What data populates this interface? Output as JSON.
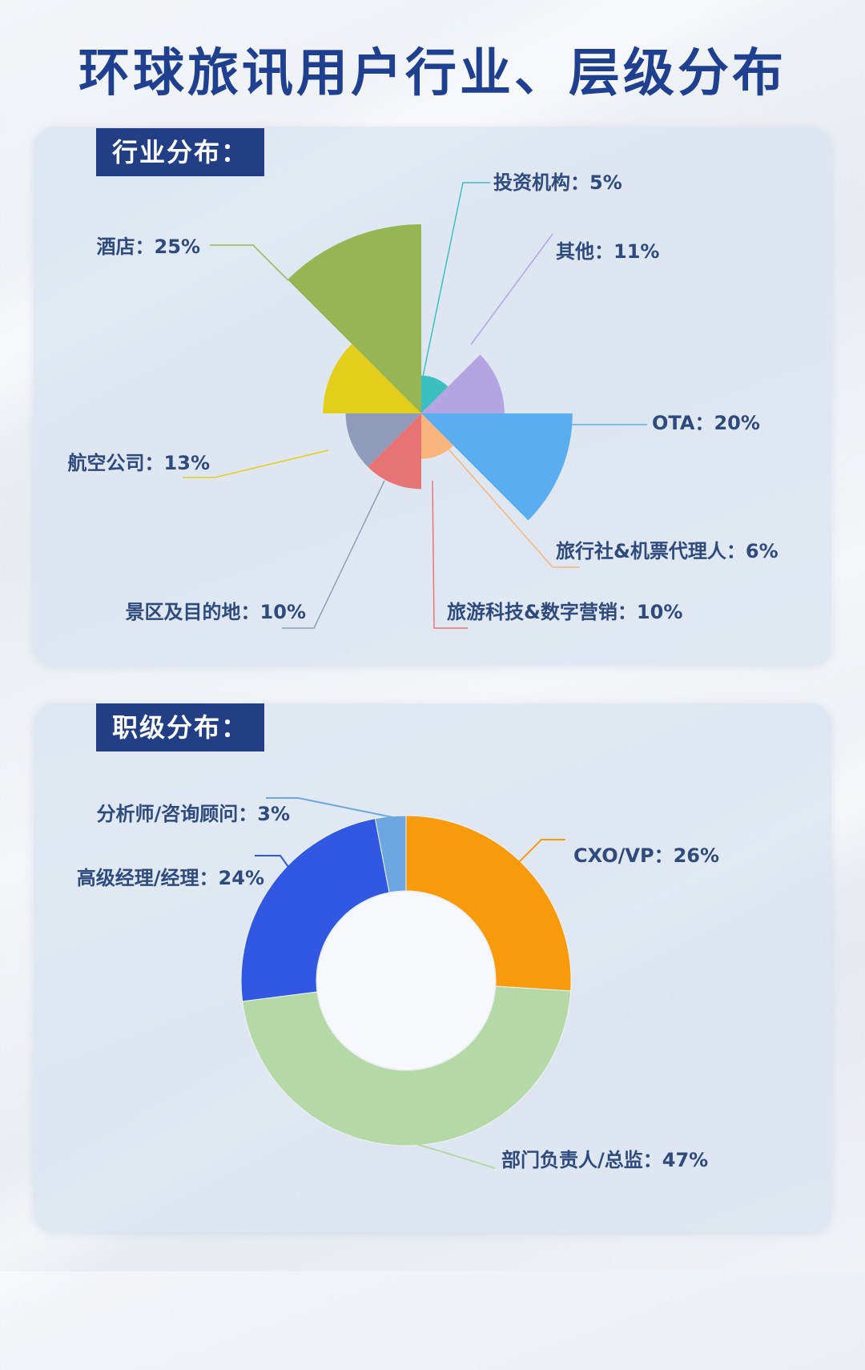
{
  "title": "环球旅讯用户行业、层级分布",
  "colors": {
    "title": "#1f3f8f",
    "tag_bg": "#223f86",
    "panel_bg": "#d9e4f0",
    "label_text": "#2f4a7c"
  },
  "chart_data": [
    {
      "type": "pie",
      "variant": "rose",
      "heading": "行业分布：",
      "slices": [
        {
          "name": "投资机构",
          "value": 5,
          "label": "投资机构：5%",
          "color": "#3bbfc0"
        },
        {
          "name": "其他",
          "value": 11,
          "label": "其他：11%",
          "color": "#b3a4e3"
        },
        {
          "name": "OTA",
          "value": 20,
          "label": "OTA：20%",
          "color": "#5aaef0"
        },
        {
          "name": "旅行社&机票代理人",
          "value": 6,
          "label": "旅行社&机票代理人：6%",
          "color": "#f8b47a"
        },
        {
          "name": "旅游科技&数字营销",
          "value": 10,
          "label": "旅游科技&数字营销：10%",
          "color": "#e77474"
        },
        {
          "name": "景区及目的地",
          "value": 10,
          "label": "景区及目的地：10%",
          "color": "#8e9cb9"
        },
        {
          "name": "航空公司",
          "value": 13,
          "label": "航空公司：13%",
          "color": "#e3cf1b"
        },
        {
          "name": "酒店",
          "value": 25,
          "label": "酒店：25%",
          "color": "#97b653"
        }
      ]
    },
    {
      "type": "pie",
      "variant": "donut",
      "heading": "职级分布：",
      "slices": [
        {
          "name": "CXO/VP",
          "value": 26,
          "label": "CXO/VP：26%",
          "color": "#f79a0b"
        },
        {
          "name": "部门负责人/总监",
          "value": 47,
          "label": "部门负责人/总监：47%",
          "color": "#b5d8a7"
        },
        {
          "name": "高级经理/经理",
          "value": 24,
          "label": "高级经理/经理：24%",
          "color": "#3058e3"
        },
        {
          "name": "分析师/咨询顾问",
          "value": 3,
          "label": "分析师/咨询顾问：3%",
          "color": "#6ea6e0"
        }
      ]
    }
  ]
}
